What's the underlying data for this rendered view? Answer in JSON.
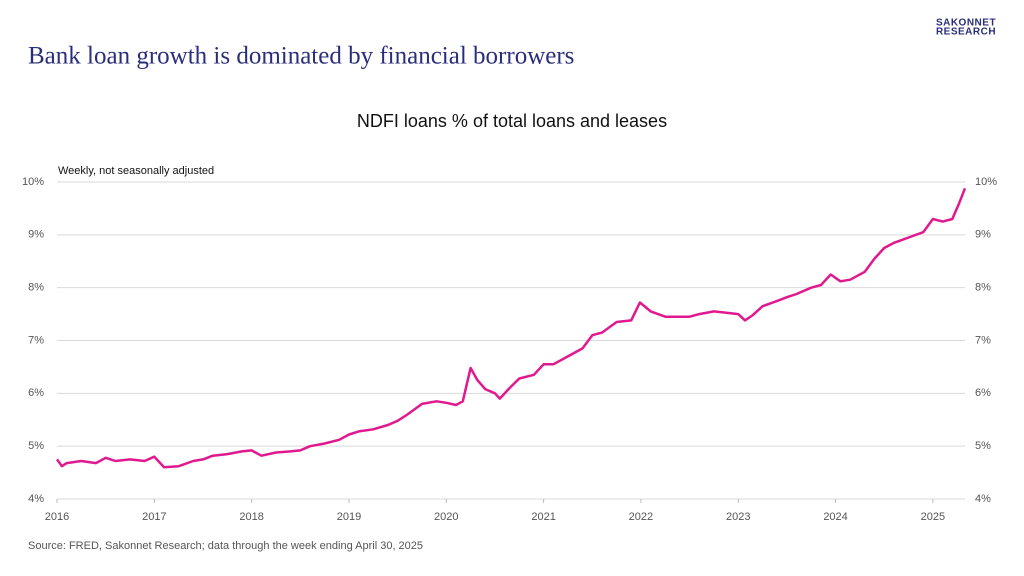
{
  "header": {
    "title": "Bank loan growth is dominated by financial borrowers",
    "logo": [
      "SAKONNET",
      "RESEARCH"
    ]
  },
  "chart_data": {
    "type": "line",
    "title": "NDFI loans % of total loans and leases",
    "note": "Weekly, not seasonally adjusted",
    "x": [
      2016.0,
      2016.05,
      2016.1,
      2016.25,
      2016.4,
      2016.5,
      2016.6,
      2016.75,
      2016.9,
      2017.0,
      2017.05,
      2017.1,
      2017.25,
      2017.4,
      2017.5,
      2017.6,
      2017.75,
      2017.9,
      2018.0,
      2018.1,
      2018.25,
      2018.4,
      2018.5,
      2018.6,
      2018.75,
      2018.9,
      2019.0,
      2019.1,
      2019.25,
      2019.4,
      2019.5,
      2019.6,
      2019.75,
      2019.9,
      2020.0,
      2020.1,
      2020.17,
      2020.25,
      2020.32,
      2020.4,
      2020.5,
      2020.55,
      2020.65,
      2020.75,
      2020.9,
      2021.0,
      2021.1,
      2021.25,
      2021.4,
      2021.5,
      2021.6,
      2021.75,
      2021.9,
      2021.99,
      2022.1,
      2022.25,
      2022.4,
      2022.5,
      2022.6,
      2022.75,
      2022.9,
      2023.0,
      2023.07,
      2023.15,
      2023.25,
      2023.4,
      2023.5,
      2023.6,
      2023.75,
      2023.85,
      2023.95,
      2024.05,
      2024.15,
      2024.3,
      2024.4,
      2024.5,
      2024.6,
      2024.75,
      2024.9,
      2025.0,
      2025.1,
      2025.2,
      2025.27,
      2025.33
    ],
    "series": [
      {
        "name": "NDFI loans % of total loans and leases",
        "color": "#e0198f",
        "values": [
          4.75,
          4.62,
          4.68,
          4.72,
          4.68,
          4.78,
          4.72,
          4.75,
          4.72,
          4.8,
          4.7,
          4.6,
          4.62,
          4.72,
          4.75,
          4.82,
          4.85,
          4.9,
          4.92,
          4.82,
          4.88,
          4.9,
          4.92,
          5.0,
          5.05,
          5.12,
          5.22,
          5.28,
          5.32,
          5.4,
          5.48,
          5.6,
          5.8,
          5.85,
          5.82,
          5.78,
          5.85,
          6.48,
          6.25,
          6.08,
          6.0,
          5.9,
          6.1,
          6.28,
          6.35,
          6.55,
          6.55,
          6.7,
          6.85,
          7.1,
          7.15,
          7.35,
          7.38,
          7.72,
          7.55,
          7.45,
          7.45,
          7.45,
          7.5,
          7.55,
          7.52,
          7.5,
          7.38,
          7.48,
          7.65,
          7.75,
          7.82,
          7.88,
          8.0,
          8.05,
          8.25,
          8.12,
          8.15,
          8.3,
          8.55,
          8.75,
          8.85,
          8.95,
          9.05,
          9.3,
          9.25,
          9.3,
          9.6,
          9.88
        ]
      }
    ],
    "xlim": [
      2016,
      2025.33
    ],
    "xticks": [
      2016,
      2017,
      2018,
      2019,
      2020,
      2021,
      2022,
      2023,
      2024,
      2025
    ],
    "ylim": [
      4,
      10
    ],
    "yticks": [
      {
        "value": 4,
        "label": "4%"
      },
      {
        "value": 5,
        "label": "5%"
      },
      {
        "value": 6,
        "label": "6%"
      },
      {
        "value": 7,
        "label": "7%"
      },
      {
        "value": 8,
        "label": "8%"
      },
      {
        "value": 9,
        "label": "9%"
      },
      {
        "value": 10,
        "label": "10%"
      }
    ],
    "grid": true,
    "source": "Source: FRED, Sakonnet Research; data through the week ending April 30, 2025"
  }
}
